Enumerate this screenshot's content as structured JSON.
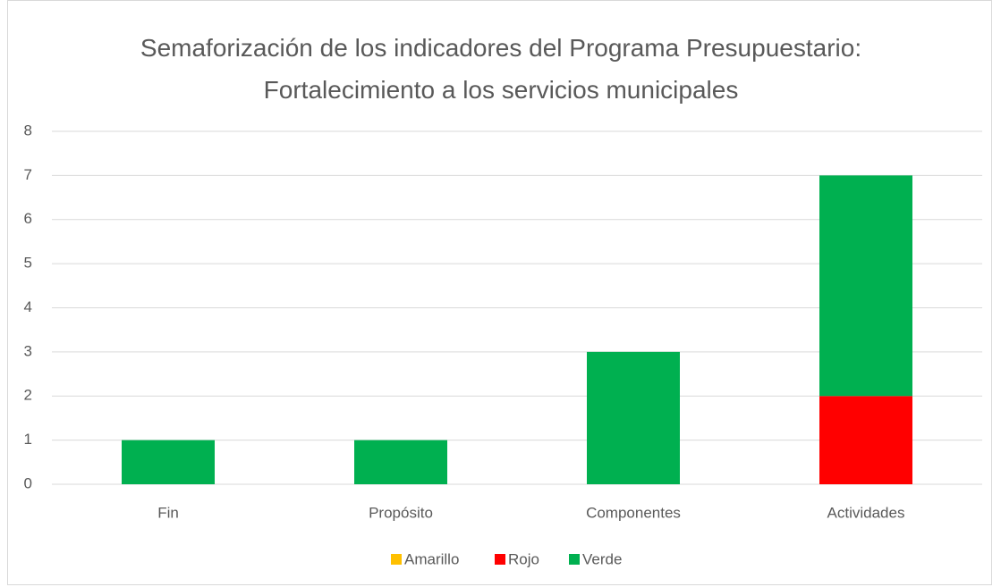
{
  "chart_data": {
    "type": "bar",
    "stacked": true,
    "title": "Semaforización de los indicadores del Programa Presupuestario: Fortalecimiento a los servicios municipales",
    "categories": [
      "Fin",
      "Propósito",
      "Componentes",
      "Actividades"
    ],
    "series": [
      {
        "name": "Amarillo",
        "color": "#FFC000",
        "values": [
          0,
          0,
          0,
          0
        ]
      },
      {
        "name": "Rojo",
        "color": "#FF0000",
        "values": [
          0,
          0,
          0,
          2
        ]
      },
      {
        "name": "Verde",
        "color": "#00B050",
        "values": [
          1,
          1,
          3,
          5
        ]
      }
    ],
    "ylim": [
      0,
      8
    ],
    "yticks": [
      0,
      1,
      2,
      3,
      4,
      5,
      6,
      7,
      8
    ],
    "grid": true,
    "legend": "bottom"
  }
}
